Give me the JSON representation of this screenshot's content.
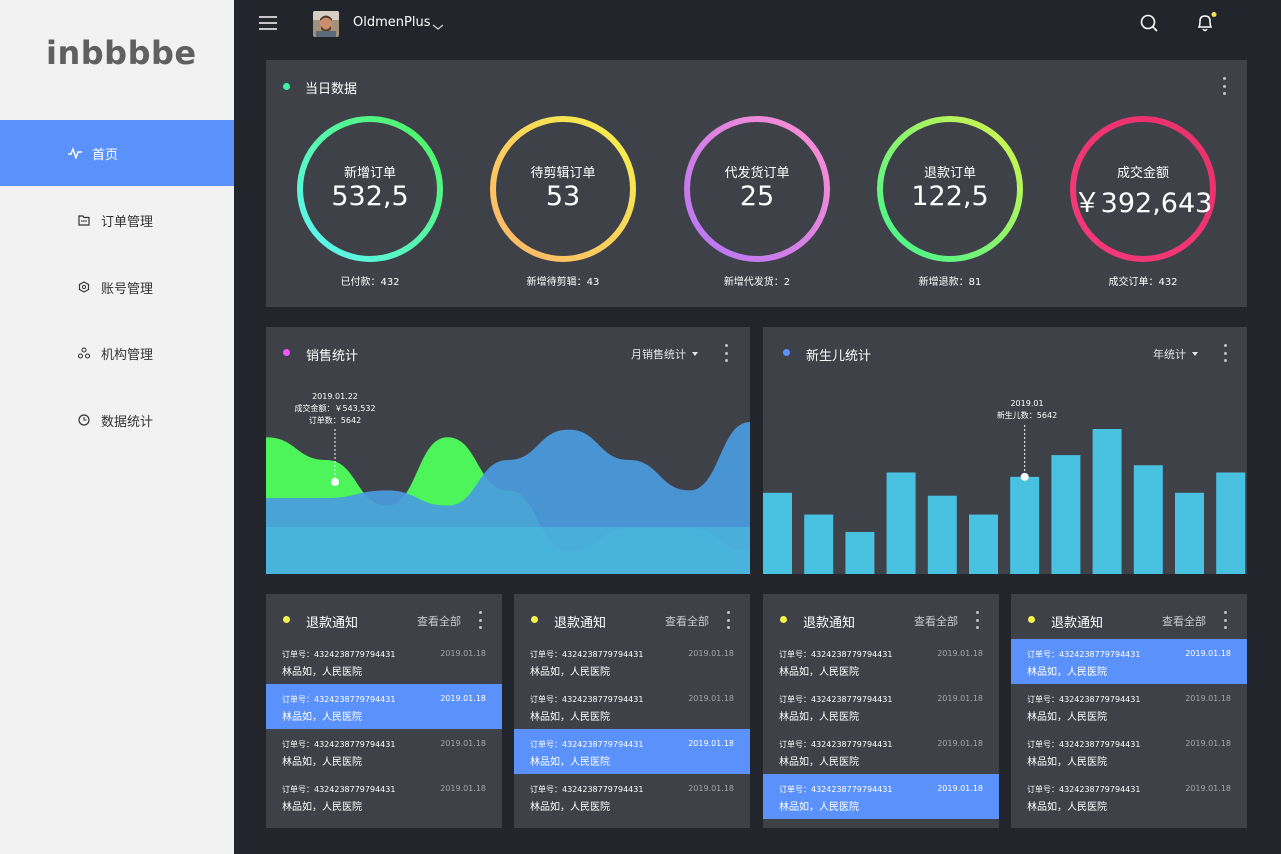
{
  "app": {
    "logo": "inbbbbe"
  },
  "sidebar": {
    "items": [
      {
        "label": "首页",
        "icon": "pulse-icon",
        "active": true
      },
      {
        "label": "订单管理",
        "icon": "folder-icon",
        "active": false
      },
      {
        "label": "账号管理",
        "icon": "account-icon",
        "active": false
      },
      {
        "label": "机构管理",
        "icon": "organization-icon",
        "active": false
      },
      {
        "label": "数据统计",
        "icon": "clock-icon",
        "active": false
      }
    ]
  },
  "topbar": {
    "username": "OldmenPlus",
    "notification_dot_color": "#f5e050"
  },
  "daily": {
    "title": "当日数据",
    "dot_color": "#3ff3a6",
    "gauges": [
      {
        "label": "新增订单",
        "value": "532,5",
        "sub": "已付款：432",
        "color_a": "#5ff6ff",
        "color_b": "#4ef55a"
      },
      {
        "label": "待剪辑订单",
        "value": "53",
        "sub": "新增待剪辑：43",
        "color_a": "#ffb36b",
        "color_b": "#f6f34a"
      },
      {
        "label": "代发货订单",
        "value": "25",
        "sub": "新增代发货：2",
        "color_a": "#b475f6",
        "color_b": "#ff8fd0"
      },
      {
        "label": "退款订单",
        "value": "122,5",
        "sub": "新增退款：81",
        "color_a": "#3ef591",
        "color_b": "#d9f54a"
      },
      {
        "label": "成交金额",
        "value": "￥392,643",
        "sub": "成交订单：432",
        "color_a": "#f73a7a",
        "color_b": "#e8306a"
      }
    ]
  },
  "sales": {
    "title": "销售统计",
    "dot_color": "#f358ff",
    "selector": "月销售统计",
    "tooltip": {
      "date": "2019.01.22",
      "amount": "成交金额：￥543,532",
      "orders": "订单数：5642"
    }
  },
  "births": {
    "title": "新生儿统计",
    "dot_color": "#5b91fb",
    "selector": "年统计",
    "tooltip": {
      "date": "2019.01",
      "count": "新生儿数：5642"
    }
  },
  "chart_data": [
    {
      "type": "area",
      "title": "销售统计",
      "series": [
        {
          "values": [
            0.9,
            0.75,
            0.45,
            0.9,
            0.55,
            0.15,
            0.3,
            0.3,
            0.15
          ]
        },
        {
          "values": [
            0.5,
            0.5,
            0.55,
            0.45,
            0.75,
            0.95,
            0.75,
            0.55,
            1.0
          ]
        }
      ]
    },
    {
      "type": "bar",
      "title": "新生儿统计",
      "values": [
        0.56,
        0.41,
        0.29,
        0.7,
        0.54,
        0.41,
        0.67,
        0.82,
        1.0,
        0.75,
        0.56,
        0.7
      ],
      "highlight_index": 6
    }
  ],
  "notices": [
    {
      "title": "退款通知",
      "view_all": "查看全部",
      "highlight": 1,
      "rows": [
        {
          "order": "订单号：4324238779794431",
          "date": "2019.01.18",
          "name": "林品如，人民医院"
        },
        {
          "order": "订单号：4324238779794431",
          "date": "2019.01.18",
          "name": "林品如，人民医院"
        },
        {
          "order": "订单号：4324238779794431",
          "date": "2019.01.18",
          "name": "林品如，人民医院"
        },
        {
          "order": "订单号：4324238779794431",
          "date": "2019.01.18",
          "name": "林品如，人民医院"
        }
      ]
    },
    {
      "title": "退款通知",
      "view_all": "查看全部",
      "highlight": 2,
      "rows": [
        {
          "order": "订单号：4324238779794431",
          "date": "2019.01.18",
          "name": "林品如，人民医院"
        },
        {
          "order": "订单号：4324238779794431",
          "date": "2019.01.18",
          "name": "林品如，人民医院"
        },
        {
          "order": "订单号：4324238779794431",
          "date": "2019.01.18",
          "name": "林品如，人民医院"
        },
        {
          "order": "订单号：4324238779794431",
          "date": "2019.01.18",
          "name": "林品如，人民医院"
        }
      ]
    },
    {
      "title": "退款通知",
      "view_all": "查看全部",
      "highlight": 3,
      "rows": [
        {
          "order": "订单号：4324238779794431",
          "date": "2019.01.18",
          "name": "林品如，人民医院"
        },
        {
          "order": "订单号：4324238779794431",
          "date": "2019.01.18",
          "name": "林品如，人民医院"
        },
        {
          "order": "订单号：4324238779794431",
          "date": "2019.01.18",
          "name": "林品如，人民医院"
        },
        {
          "order": "订单号：4324238779794431",
          "date": "2019.01.18",
          "name": "林品如，人民医院"
        }
      ]
    },
    {
      "title": "退款通知",
      "view_all": "查看全部",
      "highlight": 0,
      "rows": [
        {
          "order": "订单号：4324238779794431",
          "date": "2019.01.18",
          "name": "林品如，人民医院"
        },
        {
          "order": "订单号：4324238779794431",
          "date": "2019.01.18",
          "name": "林品如，人民医院"
        },
        {
          "order": "订单号：4324238779794431",
          "date": "2019.01.18",
          "name": "林品如，人民医院"
        },
        {
          "order": "订单号：4324238779794431",
          "date": "2019.01.18",
          "name": "林品如，人民医院"
        }
      ]
    }
  ]
}
